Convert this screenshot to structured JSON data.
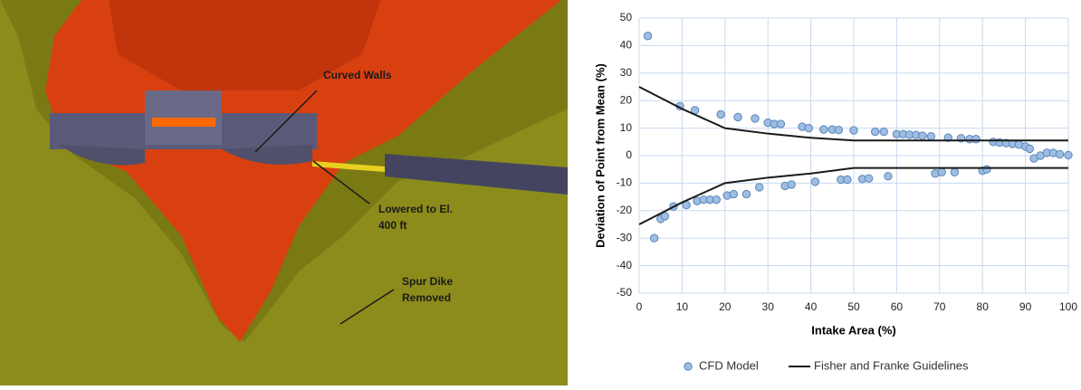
{
  "figure_annotations": [
    [
      "Curved Walls"
    ],
    [
      "Lowered to El.",
      "400 ft"
    ],
    [
      "Spur Dike",
      "Removed"
    ]
  ],
  "chart_data": {
    "type": "scatter",
    "x_label": "Intake Area (%)",
    "y_label": "Deviation of Point from Mean (%)",
    "xlim": [
      0,
      100
    ],
    "xticks": [
      0,
      10,
      20,
      30,
      40,
      50,
      60,
      70,
      80,
      90,
      100
    ],
    "ylim": [
      -50,
      50
    ],
    "yticks": [
      -50,
      -40,
      -30,
      -20,
      -10,
      0,
      10,
      20,
      30,
      40,
      50
    ],
    "grid": true,
    "legend": "bottom",
    "series": [
      {
        "name": "CFD Model",
        "type": "scatter",
        "color": "#9dbde3",
        "x": [
          2,
          9.5,
          13,
          19,
          23,
          27,
          30,
          31.5,
          33,
          38,
          39.5,
          43,
          45,
          46.5,
          50,
          55,
          57,
          60,
          61.5,
          63,
          64.5,
          66,
          68,
          72,
          75,
          77,
          78.5,
          82.5,
          84,
          85.5,
          87,
          88.5,
          90,
          91,
          92,
          93.5,
          95,
          96.5,
          98,
          100,
          3.5,
          5,
          6,
          8,
          11,
          13.5,
          15,
          16.5,
          18,
          20.5,
          22,
          25,
          28,
          34,
          35.5,
          41,
          47,
          48.5,
          52,
          53.5,
          58,
          69,
          70.5,
          73.5,
          80,
          81
        ],
        "values": [
          43.5,
          18,
          16.5,
          15,
          14,
          13.5,
          12,
          11.5,
          11.5,
          10.5,
          10,
          9.5,
          9.5,
          9.3,
          9.2,
          8.7,
          8.7,
          7.8,
          7.8,
          7.6,
          7.5,
          7.2,
          7,
          6.5,
          6.3,
          6,
          6,
          5,
          4.8,
          4.6,
          4.3,
          4,
          3.3,
          2.5,
          -1,
          0,
          1,
          1,
          0.5,
          0.2,
          -30,
          -23,
          -22,
          -18.5,
          -18,
          -16.5,
          -16,
          -16,
          -16,
          -14.5,
          -14,
          -14,
          -11.5,
          -11,
          -10.5,
          -9.5,
          -8.7,
          -8.7,
          -8.5,
          -8.3,
          -7.5,
          -6.5,
          -6,
          -6,
          -5.5,
          -5
        ]
      },
      {
        "name": "Fisher and Franke Guidelines",
        "type": "line",
        "color": "#1a1a1a",
        "x": [
          0,
          5,
          10,
          20,
          30,
          40,
          50,
          100,
          null,
          0,
          5,
          10,
          20,
          30,
          40,
          50,
          100
        ],
        "values": [
          25,
          21,
          17,
          10,
          8,
          6.5,
          5.5,
          5.5,
          null,
          -25,
          -21,
          -17,
          -10,
          -8,
          -6.5,
          -4.5,
          -4.5
        ]
      }
    ]
  }
}
